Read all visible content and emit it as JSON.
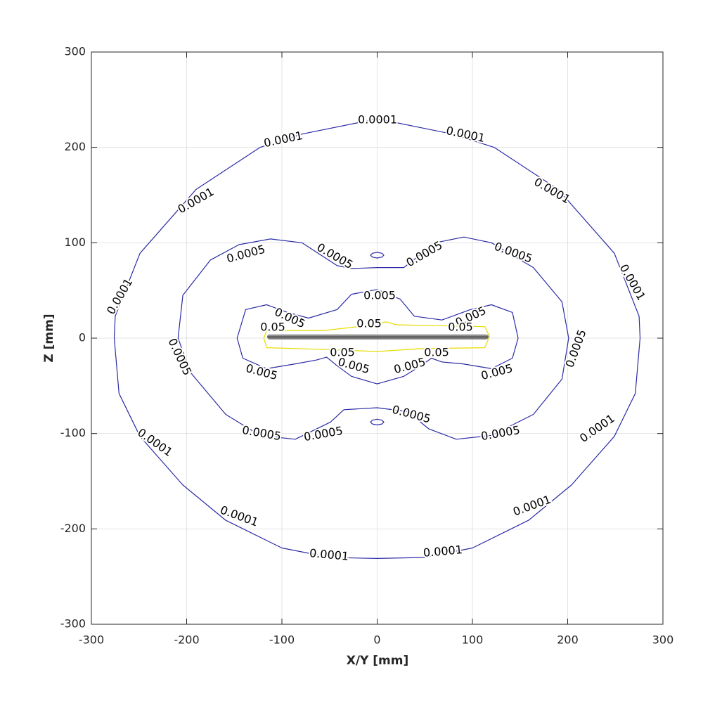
{
  "chart_data": {
    "type": "contour",
    "xlabel": "X/Y [mm]",
    "ylabel": "Z [mm]",
    "xlim": [
      -300,
      300
    ],
    "ylim": [
      -300,
      300
    ],
    "xticks": [
      -300,
      -200,
      -100,
      0,
      100,
      200,
      300
    ],
    "yticks": [
      -300,
      -200,
      -100,
      0,
      100,
      200,
      300
    ],
    "grid": true,
    "contours": [
      {
        "level": 0.0001,
        "color": "#2b2ba6",
        "x": [
          0,
          -79,
          -123,
          -190,
          -249,
          -275,
          -276,
          -271,
          -249,
          -204,
          -159,
          -100,
          -49,
          0,
          49,
          100,
          159,
          204,
          249,
          271,
          276,
          275,
          249,
          190,
          123,
          79
        ],
        "y": [
          230,
          214,
          200,
          156,
          89,
          23,
          0,
          -58,
          -103,
          -154,
          -191,
          -220,
          -230,
          -231,
          -230,
          -220,
          -191,
          -154,
          -103,
          -58,
          0,
          23,
          89,
          156,
          200,
          214
        ]
      },
      {
        "level": 0.0005,
        "color": "#2b2ba6",
        "x": [
          -112,
          -79,
          -42,
          -27,
          0,
          28,
          61,
          91,
          120,
          164,
          194,
          201,
          194,
          164,
          120,
          83,
          54,
          32,
          0,
          -35,
          -49,
          -86,
          -123,
          -159,
          -196,
          -209,
          -204,
          -175,
          -145,
          null,
          -7,
          -5,
          0,
          5,
          7,
          5,
          0,
          -5,
          null,
          -7,
          -5,
          0,
          5,
          7,
          5,
          0,
          -5
        ],
        "y": [
          104,
          100,
          76,
          73,
          74,
          74,
          100,
          106,
          100,
          74,
          38,
          0,
          -43,
          -80,
          -102,
          -106,
          -95,
          -77,
          -73,
          -75,
          -88,
          -106,
          -102,
          -80,
          -36,
          0,
          45,
          82,
          98,
          null,
          87,
          89,
          90,
          89,
          87,
          85,
          84,
          85,
          null,
          -88,
          -86,
          -85,
          -86,
          -88,
          -90,
          -91,
          -90
        ]
      },
      {
        "level": 0.005,
        "color": "#2b2ba6",
        "x": [
          -116,
          -138,
          -147,
          -141,
          -116,
          -86,
          -64,
          -53,
          -42,
          -27,
          0,
          28,
          46,
          57,
          68,
          90,
          120,
          142,
          148,
          142,
          120,
          98,
          68,
          39,
          24,
          0,
          -27,
          -42,
          -72,
          -94
        ],
        "y": [
          35,
          30,
          0,
          -21,
          -32,
          -27,
          -23,
          -20,
          -29,
          -40,
          -48,
          -40,
          -29,
          -21,
          -25,
          -27,
          -32,
          -21,
          0,
          27,
          35,
          30,
          19,
          23,
          41,
          51,
          46,
          30,
          21,
          27
        ]
      },
      {
        "level": 0.05,
        "color": "#e6dc00",
        "x": [
          -116,
          -56,
          -20,
          10,
          20,
          113,
          118,
          113,
          46,
          0,
          -49,
          -116,
          -119
        ],
        "y": [
          8,
          8,
          12,
          17,
          14,
          12,
          2,
          -10,
          -11,
          -14,
          -12,
          -10,
          0
        ]
      }
    ]
  }
}
